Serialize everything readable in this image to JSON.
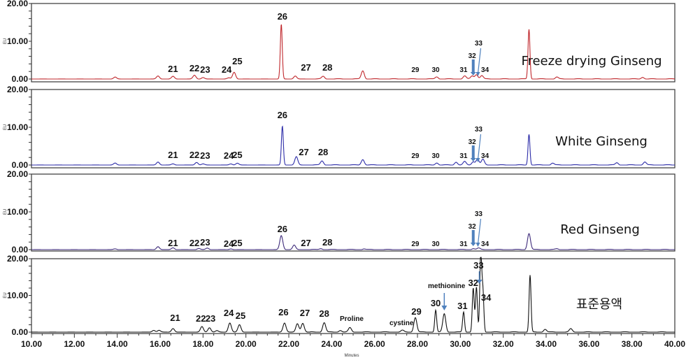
{
  "chart_data": {
    "type": "line",
    "title": "",
    "xlabel": "Minutes",
    "ylabel": "EU",
    "xlim": [
      10,
      40
    ],
    "ylim": [
      0,
      20
    ],
    "x_ticks": [
      "10.00",
      "12.00",
      "14.00",
      "16.00",
      "18.00",
      "20.00",
      "22.00",
      "24.00",
      "26.00",
      "28.00",
      "30.00",
      "32.00",
      "34.00",
      "36.00",
      "38.00",
      "40.00"
    ],
    "y_ticks": [
      "0.00",
      "10.00",
      "20.00"
    ],
    "grid": false,
    "legend": "none",
    "panels": [
      {
        "name": "Freeze drying Ginseng",
        "color": "#c0282d",
        "peaks": [
          {
            "x": 13.9,
            "y": 0.5
          },
          {
            "x": 15.9,
            "y": 0.8
          },
          {
            "x": 16.6,
            "y": 0.7
          },
          {
            "x": 17.6,
            "y": 1.0
          },
          {
            "x": 18.0,
            "y": 0.4
          },
          {
            "x": 19.2,
            "y": 0.3
          },
          {
            "x": 19.45,
            "y": 1.8
          },
          {
            "x": 21.65,
            "y": 14.5
          },
          {
            "x": 22.3,
            "y": 0.8
          },
          {
            "x": 23.6,
            "y": 0.7
          },
          {
            "x": 25.45,
            "y": 2.2
          },
          {
            "x": 28.9,
            "y": 0.6
          },
          {
            "x": 30.2,
            "y": 0.8
          },
          {
            "x": 30.55,
            "y": 0.8
          },
          {
            "x": 30.75,
            "y": 1.2
          },
          {
            "x": 31.0,
            "y": 0.9
          },
          {
            "x": 33.2,
            "y": 13.2
          },
          {
            "x": 34.5,
            "y": 0.5
          },
          {
            "x": 38.5,
            "y": 0.5
          }
        ],
        "labels": [
          {
            "text": "21",
            "x": 16.6
          },
          {
            "text": "22",
            "x": 17.6
          },
          {
            "text": "23",
            "x": 18.1
          },
          {
            "text": "24",
            "x": 19.1
          },
          {
            "text": "25",
            "x": 19.6
          },
          {
            "text": "26",
            "x": 21.7
          },
          {
            "text": "27",
            "x": 22.8
          },
          {
            "text": "28",
            "x": 23.8
          },
          {
            "text": "29",
            "x": 27.9
          },
          {
            "text": "30",
            "x": 28.85
          },
          {
            "text": "31",
            "x": 30.15
          },
          {
            "text": "32",
            "x": 30.55
          },
          {
            "text": "33",
            "x": 30.85
          },
          {
            "text": "34",
            "x": 31.15
          }
        ]
      },
      {
        "name": "White Ginseng",
        "color": "#2c2ca8",
        "peaks": [
          {
            "x": 13.9,
            "y": 0.5
          },
          {
            "x": 15.9,
            "y": 0.8
          },
          {
            "x": 16.6,
            "y": 0.3
          },
          {
            "x": 17.7,
            "y": 0.7
          },
          {
            "x": 18.0,
            "y": 0.3
          },
          {
            "x": 19.3,
            "y": 0.3
          },
          {
            "x": 19.6,
            "y": 0.5
          },
          {
            "x": 21.7,
            "y": 10.3
          },
          {
            "x": 22.35,
            "y": 2.2
          },
          {
            "x": 23.55,
            "y": 1.1
          },
          {
            "x": 25.45,
            "y": 1.5
          },
          {
            "x": 28.9,
            "y": 0.6
          },
          {
            "x": 29.8,
            "y": 0.8
          },
          {
            "x": 30.2,
            "y": 0.9
          },
          {
            "x": 30.6,
            "y": 0.9
          },
          {
            "x": 30.8,
            "y": 1.6
          },
          {
            "x": 31.05,
            "y": 1.5
          },
          {
            "x": 33.2,
            "y": 8.2
          },
          {
            "x": 34.3,
            "y": 0.5
          },
          {
            "x": 37.3,
            "y": 0.6
          },
          {
            "x": 38.6,
            "y": 0.8
          }
        ],
        "labels": [
          {
            "text": "21",
            "x": 16.6
          },
          {
            "text": "22",
            "x": 17.6
          },
          {
            "text": "23",
            "x": 18.1
          },
          {
            "text": "24",
            "x": 19.2
          },
          {
            "text": "25",
            "x": 19.6
          },
          {
            "text": "26",
            "x": 21.7
          },
          {
            "text": "27",
            "x": 22.7
          },
          {
            "text": "28",
            "x": 23.6
          },
          {
            "text": "29",
            "x": 27.9
          },
          {
            "text": "30",
            "x": 28.85
          },
          {
            "text": "31",
            "x": 30.15
          },
          {
            "text": "32",
            "x": 30.55
          },
          {
            "text": "33",
            "x": 30.85
          },
          {
            "text": "34",
            "x": 31.15
          }
        ]
      },
      {
        "name": "Red Ginseng",
        "color": "#3d2a7a",
        "peaks": [
          {
            "x": 13.9,
            "y": 0.2
          },
          {
            "x": 15.9,
            "y": 0.8
          },
          {
            "x": 16.6,
            "y": 0.5
          },
          {
            "x": 17.8,
            "y": 0.3
          },
          {
            "x": 18.2,
            "y": 0.4
          },
          {
            "x": 19.3,
            "y": 0.2
          },
          {
            "x": 21.65,
            "y": 3.7
          },
          {
            "x": 22.25,
            "y": 1.2
          },
          {
            "x": 23.5,
            "y": 0.3
          },
          {
            "x": 25.5,
            "y": 0.2
          },
          {
            "x": 30.6,
            "y": 0.3
          },
          {
            "x": 30.85,
            "y": 0.4
          },
          {
            "x": 33.2,
            "y": 4.3
          },
          {
            "x": 34.5,
            "y": 0.2
          }
        ],
        "labels": [
          {
            "text": "21",
            "x": 16.6
          },
          {
            "text": "22",
            "x": 17.6
          },
          {
            "text": "23",
            "x": 18.1
          },
          {
            "text": "24",
            "x": 19.2
          },
          {
            "text": "25",
            "x": 19.6
          },
          {
            "text": "26",
            "x": 21.7
          },
          {
            "text": "27",
            "x": 22.8
          },
          {
            "text": "28",
            "x": 23.8
          },
          {
            "text": "29",
            "x": 27.9
          },
          {
            "text": "30",
            "x": 28.85
          },
          {
            "text": "31",
            "x": 30.15
          },
          {
            "text": "32",
            "x": 30.55
          },
          {
            "text": "33",
            "x": 30.85
          },
          {
            "text": "34",
            "x": 31.15
          }
        ]
      },
      {
        "name": "표준용액",
        "color": "#111111",
        "peaks": [
          {
            "x": 15.7,
            "y": 0.5
          },
          {
            "x": 15.95,
            "y": 0.5
          },
          {
            "x": 16.6,
            "y": 1.0
          },
          {
            "x": 17.95,
            "y": 1.5
          },
          {
            "x": 18.3,
            "y": 1.2
          },
          {
            "x": 18.65,
            "y": 0.4
          },
          {
            "x": 19.25,
            "y": 2.5
          },
          {
            "x": 19.7,
            "y": 2.0
          },
          {
            "x": 21.8,
            "y": 2.5
          },
          {
            "x": 22.4,
            "y": 2.3
          },
          {
            "x": 22.65,
            "y": 2.4
          },
          {
            "x": 23.65,
            "y": 2.6
          },
          {
            "x": 24.4,
            "y": 0.5
          },
          {
            "x": 24.85,
            "y": 1.2
          },
          {
            "x": 27.3,
            "y": 0.5
          },
          {
            "x": 27.9,
            "y": 4.0
          },
          {
            "x": 28.85,
            "y": 6.0
          },
          {
            "x": 29.25,
            "y": 5.0
          },
          {
            "x": 30.15,
            "y": 5.5
          },
          {
            "x": 30.6,
            "y": 12.0
          },
          {
            "x": 30.75,
            "y": 12.2
          },
          {
            "x": 30.95,
            "y": 21.0
          },
          {
            "x": 31.05,
            "y": 11.0
          },
          {
            "x": 33.25,
            "y": 15.5
          },
          {
            "x": 33.95,
            "y": 0.8
          },
          {
            "x": 35.15,
            "y": 0.9
          }
        ],
        "labels": [
          {
            "text": "21",
            "x": 16.7
          },
          {
            "text": "22",
            "x": 17.9
          },
          {
            "text": "23",
            "x": 18.35
          },
          {
            "text": "24",
            "x": 19.2
          },
          {
            "text": "25",
            "x": 19.75
          },
          {
            "text": "26",
            "x": 21.75
          },
          {
            "text": "27",
            "x": 22.75
          },
          {
            "text": "28",
            "x": 23.65
          },
          {
            "text": "29",
            "x": 27.95
          },
          {
            "text": "30",
            "x": 28.85
          },
          {
            "text": "31",
            "x": 30.1
          },
          {
            "text": "32",
            "x": 30.6
          },
          {
            "text": "33",
            "x": 30.85
          },
          {
            "text": "34",
            "x": 31.2
          }
        ],
        "annotations": [
          "Proline",
          "cystine",
          "methionine"
        ]
      }
    ]
  },
  "panel_names": [
    "Freeze drying Ginseng",
    "White Ginseng",
    "Red Ginseng",
    "표준용액"
  ],
  "annotations": {
    "proline": "Proline",
    "cystine": "cystine",
    "methionine": "methionine"
  },
  "axes": {
    "ylabel": "EU",
    "xlabel": "Minutes"
  }
}
